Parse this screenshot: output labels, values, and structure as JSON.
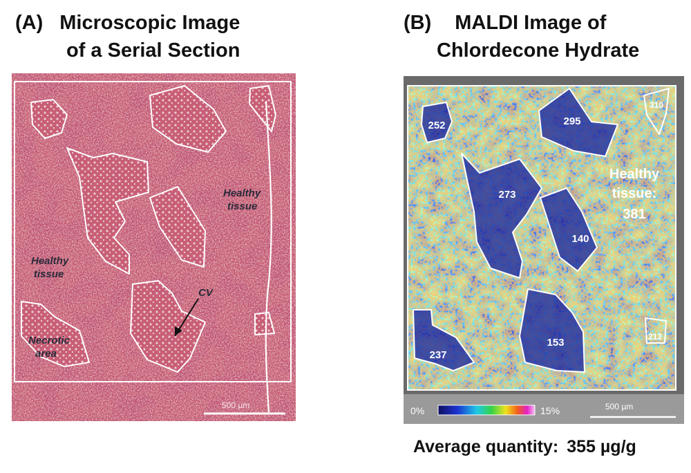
{
  "panel_a": {
    "tag": "(A)",
    "title_line1": "Microscopic Image",
    "title_line2": "of a Serial Section",
    "labels": {
      "healthy_right_1": "Healthy",
      "healthy_right_2": "tissue",
      "healthy_left_1": "Healthy",
      "healthy_left_2": "tissue",
      "cv": "CV",
      "necrotic_1": "Necrotic",
      "necrotic_2": "area"
    },
    "scalebar": "500 µm"
  },
  "panel_b": {
    "tag": "(B)",
    "title_line1": "MALDI Image of",
    "title_line2": "Chlordecone Hydrate",
    "region_values": [
      "252",
      "295",
      "310",
      "273",
      "140",
      "237",
      "153",
      "212"
    ],
    "healthy_1": "Healthy",
    "healthy_2": "tissue:",
    "healthy_value": "381",
    "colorbar_min": "0%",
    "colorbar_max": "15%",
    "scalebar": "500 µm"
  },
  "average_label": "Average quantity:",
  "average_value": "355 µg/g",
  "colors": {
    "tissue": "#c3566c",
    "heatmap_low": "#1a2aa0",
    "heatmap_mid": "#27c6c8",
    "heatmap_high": "#7fe05a",
    "outline": "#ffffff"
  }
}
